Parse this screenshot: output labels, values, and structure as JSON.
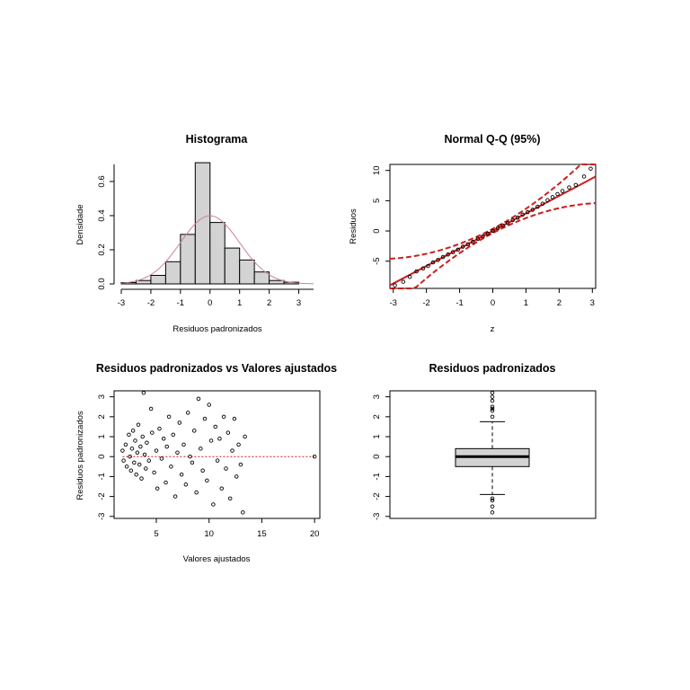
{
  "colors": {
    "bar_fill": "#d3d3d3",
    "density_curve": "#c9848f",
    "qq_line": "#cc1f1f",
    "points": "#000000",
    "ref_line": "#cc1f1f"
  },
  "panels": {
    "histogram": {
      "title": "Histograma",
      "xlabel": "Residuos padronizados",
      "ylabel": "Densidade",
      "xticks": [
        "-3",
        "-2",
        "-1",
        "0",
        "1",
        "2",
        "3"
      ],
      "yticks": [
        "0.0",
        "0.2",
        "0.4",
        "0.6"
      ]
    },
    "qq": {
      "title": "Normal Q-Q (95%)",
      "xlabel": "z",
      "ylabel": "Residuos",
      "xticks": [
        "-3",
        "-2",
        "-1",
        "0",
        "1",
        "2",
        "3"
      ],
      "yticks": [
        "-5",
        "0",
        "5",
        "10"
      ]
    },
    "scatter": {
      "title": "Residuos padronizados vs Valores ajustados",
      "xlabel": "Valores ajustados",
      "ylabel": "Residuos padronizados",
      "xticks": [
        "5",
        "10",
        "15",
        "20"
      ],
      "yticks": [
        "-3",
        "-2",
        "-1",
        "0",
        "1",
        "2",
        "3"
      ]
    },
    "boxplot": {
      "title": "Residuos padronizados",
      "yticks": [
        "-3",
        "-2",
        "-1",
        "0",
        "1",
        "2",
        "3"
      ]
    }
  },
  "chart_data": [
    {
      "type": "bar",
      "title": "Histograma",
      "xlabel": "Residuos padronizados",
      "ylabel": "Densidade",
      "bin_edges": [
        -3,
        -2.5,
        -2,
        -1.5,
        -1,
        -0.5,
        0,
        0.5,
        1,
        1.5,
        2,
        2.5,
        3
      ],
      "values": [
        0.008,
        0.02,
        0.05,
        0.13,
        0.29,
        0.71,
        0.36,
        0.21,
        0.14,
        0.07,
        0.02,
        0.01
      ],
      "xlim": [
        -3,
        3.5
      ],
      "ylim": [
        0,
        0.7
      ],
      "overlay": "normal density curve (mean 0, sd 1)"
    },
    {
      "type": "scatter",
      "title": "Normal Q-Q (95%)",
      "xlabel": "z",
      "ylabel": "Residuos",
      "xlim": [
        -3.1,
        3.1
      ],
      "ylim": [
        -9.5,
        11
      ],
      "reference_line": {
        "intercept": 0,
        "slope": 2.9
      },
      "band": "95% confidence envelope (dashed)",
      "points": [
        [
          -2.95,
          -9.0
        ],
        [
          -2.7,
          -8.4
        ],
        [
          -2.5,
          -7.6
        ],
        [
          -2.3,
          -6.7
        ],
        [
          -2.1,
          -6.2
        ],
        [
          -1.95,
          -5.8
        ],
        [
          -1.8,
          -5.2
        ],
        [
          -1.65,
          -4.8
        ],
        [
          -1.5,
          -4.3
        ],
        [
          -1.35,
          -3.9
        ],
        [
          -1.2,
          -3.5
        ],
        [
          -1.05,
          -3.1
        ],
        [
          -0.9,
          -2.6
        ],
        [
          -0.75,
          -2.2
        ],
        [
          -0.6,
          -1.8
        ],
        [
          -0.45,
          -1.3
        ],
        [
          -0.3,
          -0.9
        ],
        [
          -0.15,
          -0.45
        ],
        [
          0,
          0
        ],
        [
          0.15,
          0.45
        ],
        [
          0.3,
          0.9
        ],
        [
          0.45,
          1.3
        ],
        [
          0.6,
          1.8
        ],
        [
          0.75,
          2.2
        ],
        [
          0.9,
          2.7
        ],
        [
          1.05,
          3.1
        ],
        [
          1.2,
          3.5
        ],
        [
          1.35,
          4.0
        ],
        [
          1.5,
          4.5
        ],
        [
          1.65,
          5.1
        ],
        [
          1.8,
          5.6
        ],
        [
          1.95,
          6.1
        ],
        [
          2.1,
          6.6
        ],
        [
          2.3,
          7.2
        ],
        [
          2.5,
          7.6
        ],
        [
          2.75,
          9.0
        ],
        [
          2.95,
          10.3
        ]
      ]
    },
    {
      "type": "scatter",
      "title": "Residuos padronizados vs Valores ajustados",
      "xlabel": "Valores ajustados",
      "ylabel": "Residuos padronizados",
      "xlim": [
        1,
        20.5
      ],
      "ylim": [
        -3.1,
        3.3
      ],
      "reference_line": {
        "y": 0
      },
      "points": [
        [
          1.8,
          0.3
        ],
        [
          1.9,
          -0.2
        ],
        [
          2.1,
          0.6
        ],
        [
          2.2,
          -0.5
        ],
        [
          2.4,
          1.1
        ],
        [
          2.5,
          0.0
        ],
        [
          2.6,
          -0.7
        ],
        [
          2.7,
          0.4
        ],
        [
          2.8,
          1.3
        ],
        [
          2.9,
          -0.3
        ],
        [
          3.0,
          0.8
        ],
        [
          3.1,
          -0.9
        ],
        [
          3.2,
          0.2
        ],
        [
          3.3,
          1.6
        ],
        [
          3.4,
          -0.4
        ],
        [
          3.5,
          0.5
        ],
        [
          3.6,
          -1.1
        ],
        [
          3.7,
          1.0
        ],
        [
          3.8,
          3.2
        ],
        [
          3.9,
          0.1
        ],
        [
          4.0,
          -0.6
        ],
        [
          4.1,
          0.7
        ],
        [
          4.3,
          -0.2
        ],
        [
          4.5,
          2.4
        ],
        [
          4.6,
          1.2
        ],
        [
          4.8,
          -0.8
        ],
        [
          5.0,
          0.3
        ],
        [
          5.1,
          -1.6
        ],
        [
          5.3,
          1.4
        ],
        [
          5.5,
          -0.1
        ],
        [
          5.7,
          0.9
        ],
        [
          5.9,
          -1.3
        ],
        [
          6.0,
          0.5
        ],
        [
          6.2,
          2.0
        ],
        [
          6.4,
          -0.5
        ],
        [
          6.6,
          1.1
        ],
        [
          6.8,
          -2.0
        ],
        [
          7.0,
          0.2
        ],
        [
          7.2,
          1.7
        ],
        [
          7.4,
          -0.9
        ],
        [
          7.6,
          0.6
        ],
        [
          7.8,
          -1.4
        ],
        [
          8.0,
          2.2
        ],
        [
          8.2,
          0.0
        ],
        [
          8.4,
          -0.3
        ],
        [
          8.6,
          1.3
        ],
        [
          8.8,
          -1.8
        ],
        [
          9.0,
          2.9
        ],
        [
          9.2,
          0.4
        ],
        [
          9.4,
          -0.7
        ],
        [
          9.6,
          1.9
        ],
        [
          9.8,
          -1.2
        ],
        [
          10.0,
          2.6
        ],
        [
          10.2,
          0.8
        ],
        [
          10.4,
          -2.4
        ],
        [
          10.6,
          1.5
        ],
        [
          10.8,
          -0.2
        ],
        [
          11.0,
          0.9
        ],
        [
          11.2,
          -1.6
        ],
        [
          11.4,
          2.0
        ],
        [
          11.6,
          -0.6
        ],
        [
          11.8,
          1.2
        ],
        [
          12.0,
          -2.1
        ],
        [
          12.2,
          0.3
        ],
        [
          12.4,
          1.9
        ],
        [
          12.6,
          -1.0
        ],
        [
          12.8,
          0.6
        ],
        [
          13.0,
          -0.4
        ],
        [
          13.2,
          -2.8
        ],
        [
          13.4,
          1.0
        ],
        [
          20.0,
          0.0
        ]
      ]
    },
    {
      "type": "box",
      "title": "Residuos padronizados",
      "ylim": [
        -3.1,
        3.3
      ],
      "whisker_low": -1.9,
      "q1": -0.5,
      "median": 0.0,
      "q3": 0.4,
      "whisker_high": 1.75,
      "outliers": [
        -2.1,
        -2.2,
        -2.5,
        -2.8,
        2.0,
        2.3,
        2.4,
        2.5,
        2.8,
        3.0,
        3.2
      ]
    }
  ]
}
